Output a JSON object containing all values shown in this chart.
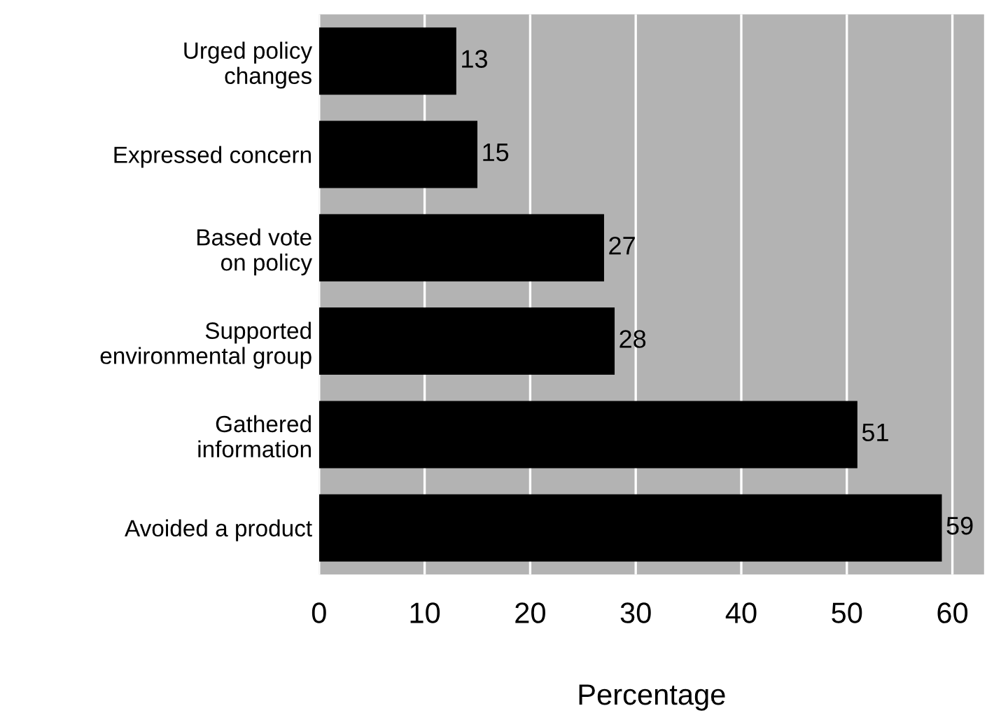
{
  "chart_data": {
    "type": "bar",
    "orientation": "horizontal",
    "xlabel": "Percentage",
    "categories": [
      "Urged policy\nchanges",
      "Expressed concern",
      "Based vote\non policy",
      "Supported\nenvironmental group",
      "Gathered\ninformation",
      "Avoided a product"
    ],
    "values": [
      13,
      15,
      27,
      28,
      51,
      59
    ],
    "color": "#000000",
    "xlim": [
      0,
      63
    ],
    "xticks": [
      0,
      10,
      20,
      30,
      40,
      50,
      60
    ],
    "grid": "x",
    "data_labels": true
  }
}
